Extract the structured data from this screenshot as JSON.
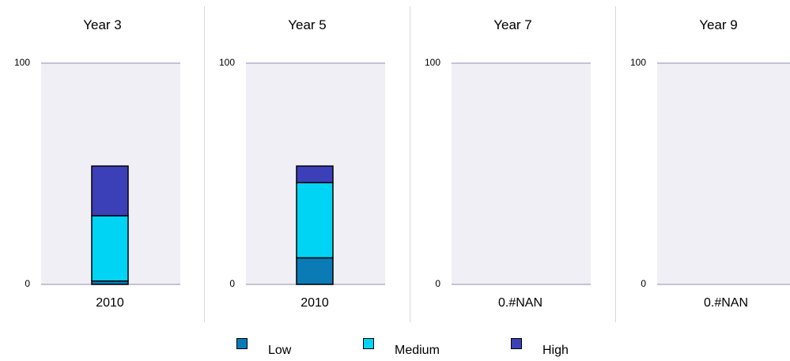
{
  "chart_data": [
    {
      "type": "bar",
      "stacked": true,
      "title": "Year 3",
      "categories": [
        "2010"
      ],
      "x_tick_labels": [
        "2010"
      ],
      "y_ticks": [
        "100",
        "0"
      ],
      "ylim": [
        0,
        100
      ],
      "series": [
        {
          "name": "Low",
          "values": [
            1.5
          ]
        },
        {
          "name": "Medium",
          "values": [
            29.5
          ]
        },
        {
          "name": "High",
          "values": [
            22.5
          ]
        }
      ]
    },
    {
      "type": "bar",
      "stacked": true,
      "title": "Year 5",
      "categories": [
        "2010"
      ],
      "x_tick_labels": [
        "2010"
      ],
      "y_ticks": [
        "100",
        "0"
      ],
      "ylim": [
        0,
        100
      ],
      "series": [
        {
          "name": "Low",
          "values": [
            12
          ]
        },
        {
          "name": "Medium",
          "values": [
            34
          ]
        },
        {
          "name": "High",
          "values": [
            7.5
          ]
        }
      ]
    },
    {
      "type": "bar",
      "stacked": true,
      "title": "Year 7",
      "categories": [],
      "x_tick_labels": [
        "0.#NAN"
      ],
      "y_ticks": [
        "100",
        "0"
      ],
      "ylim": [
        0,
        100
      ],
      "series": []
    },
    {
      "type": "bar",
      "stacked": true,
      "title": "Year 9",
      "categories": [],
      "x_tick_labels": [
        "0.#NAN"
      ],
      "y_ticks": [
        "100",
        "0"
      ],
      "ylim": [
        0,
        100
      ],
      "series": []
    }
  ],
  "legend": {
    "placement": "bottom",
    "items": [
      {
        "name": "Low",
        "color": "#0a7bb5"
      },
      {
        "name": "Medium",
        "color": "#00d4f5"
      },
      {
        "name": "High",
        "color": "#3b40b8"
      }
    ]
  },
  "colors": {
    "plot_background": "#f0eff5",
    "axis_line": "#b0b0d0",
    "divider": "#d8d8d8"
  }
}
